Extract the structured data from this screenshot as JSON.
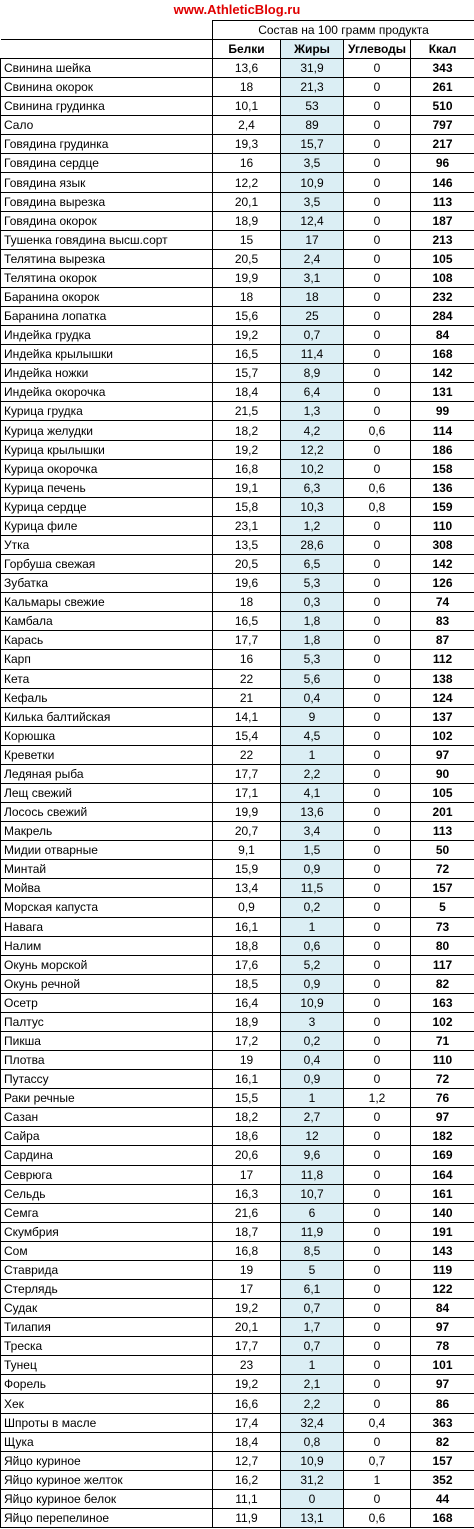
{
  "header": {
    "site": "www.AthleticBlog.ru",
    "group": "Состав на 100 грамм продукта",
    "columns": [
      "Белки",
      "Жиры",
      "Углеводы",
      "Ккал"
    ]
  },
  "table": {
    "rows": [
      [
        "Свинина шейка",
        "13,6",
        "31,9",
        "0",
        "343"
      ],
      [
        "Свинина окорок",
        "18",
        "21,3",
        "0",
        "261"
      ],
      [
        "Свинина грудинка",
        "10,1",
        "53",
        "0",
        "510"
      ],
      [
        "Сало",
        "2,4",
        "89",
        "0",
        "797"
      ],
      [
        "Говядина грудинка",
        "19,3",
        "15,7",
        "0",
        "217"
      ],
      [
        "Говядина сердце",
        "16",
        "3,5",
        "0",
        "96"
      ],
      [
        "Говядина язык",
        "12,2",
        "10,9",
        "0",
        "146"
      ],
      [
        "Говядина вырезка",
        "20,1",
        "3,5",
        "0",
        "113"
      ],
      [
        "Говядина окорок",
        "18,9",
        "12,4",
        "0",
        "187"
      ],
      [
        "Тушенка говядина высш.сорт",
        "15",
        "17",
        "0",
        "213"
      ],
      [
        "Телятина вырезка",
        "20,5",
        "2,4",
        "0",
        "105"
      ],
      [
        "Телятина окорок",
        "19,9",
        "3,1",
        "0",
        "108"
      ],
      [
        "Баранина окорок",
        "18",
        "18",
        "0",
        "232"
      ],
      [
        "Баранина лопатка",
        "15,6",
        "25",
        "0",
        "284"
      ],
      [
        "Индейка грудка",
        "19,2",
        "0,7",
        "0",
        "84"
      ],
      [
        "Индейка крылышки",
        "16,5",
        "11,4",
        "0",
        "168"
      ],
      [
        "Индейка ножки",
        "15,7",
        "8,9",
        "0",
        "142"
      ],
      [
        "Индейка окорочка",
        "18,4",
        "6,4",
        "0",
        "131"
      ],
      [
        "Курица грудка",
        "21,5",
        "1,3",
        "0",
        "99"
      ],
      [
        "Курица желудки",
        "18,2",
        "4,2",
        "0,6",
        "114"
      ],
      [
        "Курица крылышки",
        "19,2",
        "12,2",
        "0",
        "186"
      ],
      [
        "Курица окорочка",
        "16,8",
        "10,2",
        "0",
        "158"
      ],
      [
        "Курица печень",
        "19,1",
        "6,3",
        "0,6",
        "136"
      ],
      [
        "Курица сердце",
        "15,8",
        "10,3",
        "0,8",
        "159"
      ],
      [
        "Курица филе",
        "23,1",
        "1,2",
        "0",
        "110"
      ],
      [
        "Утка",
        "13,5",
        "28,6",
        "0",
        "308"
      ],
      [
        "Горбуша свежая",
        "20,5",
        "6,5",
        "0",
        "142"
      ],
      [
        "Зубатка",
        "19,6",
        "5,3",
        "0",
        "126"
      ],
      [
        "Кальмары свежие",
        "18",
        "0,3",
        "0",
        "74"
      ],
      [
        "Камбала",
        "16,5",
        "1,8",
        "0",
        "83"
      ],
      [
        "Карась",
        "17,7",
        "1,8",
        "0",
        "87"
      ],
      [
        "Карп",
        "16",
        "5,3",
        "0",
        "112"
      ],
      [
        "Кета",
        "22",
        "5,6",
        "0",
        "138"
      ],
      [
        "Кефаль",
        "21",
        "0,4",
        "0",
        "124"
      ],
      [
        "Килька балтийская",
        "14,1",
        "9",
        "0",
        "137"
      ],
      [
        "Корюшка",
        "15,4",
        "4,5",
        "0",
        "102"
      ],
      [
        "Креветки",
        "22",
        "1",
        "0",
        "97"
      ],
      [
        "Ледяная рыба",
        "17,7",
        "2,2",
        "0",
        "90"
      ],
      [
        "Лещ свежий",
        "17,1",
        "4,1",
        "0",
        "105"
      ],
      [
        "Лосось свежий",
        "19,9",
        "13,6",
        "0",
        "201"
      ],
      [
        "Макрель",
        "20,7",
        "3,4",
        "0",
        "113"
      ],
      [
        "Мидии отварные",
        "9,1",
        "1,5",
        "0",
        "50"
      ],
      [
        "Минтай",
        "15,9",
        "0,9",
        "0",
        "72"
      ],
      [
        "Мойва",
        "13,4",
        "11,5",
        "0",
        "157"
      ],
      [
        "Морская капуста",
        "0,9",
        "0,2",
        "0",
        "5"
      ],
      [
        "Навага",
        "16,1",
        "1",
        "0",
        "73"
      ],
      [
        "Налим",
        "18,8",
        "0,6",
        "0",
        "80"
      ],
      [
        "Окунь морской",
        "17,6",
        "5,2",
        "0",
        "117"
      ],
      [
        "Окунь речной",
        "18,5",
        "0,9",
        "0",
        "82"
      ],
      [
        "Осетр",
        "16,4",
        "10,9",
        "0",
        "163"
      ],
      [
        "Палтус",
        "18,9",
        "3",
        "0",
        "102"
      ],
      [
        "Пикша",
        "17,2",
        "0,2",
        "0",
        "71"
      ],
      [
        "Плотва",
        "19",
        "0,4",
        "0",
        "110"
      ],
      [
        "Путассу",
        "16,1",
        "0,9",
        "0",
        "72"
      ],
      [
        "Раки речные",
        "15,5",
        "1",
        "1,2",
        "76"
      ],
      [
        "Сазан",
        "18,2",
        "2,7",
        "0",
        "97"
      ],
      [
        "Сайра",
        "18,6",
        "12",
        "0",
        "182"
      ],
      [
        "Сардина",
        "20,6",
        "9,6",
        "0",
        "169"
      ],
      [
        "Севрюга",
        "17",
        "11,8",
        "0",
        "164"
      ],
      [
        "Сельдь",
        "16,3",
        "10,7",
        "0",
        "161"
      ],
      [
        "Семга",
        "21,6",
        "6",
        "0",
        "140"
      ],
      [
        "Скумбрия",
        "18,7",
        "11,9",
        "0",
        "191"
      ],
      [
        "Сом",
        "16,8",
        "8,5",
        "0",
        "143"
      ],
      [
        "Ставрида",
        "19",
        "5",
        "0",
        "119"
      ],
      [
        "Стерлядь",
        "17",
        "6,1",
        "0",
        "122"
      ],
      [
        "Судак",
        "19,2",
        "0,7",
        "0",
        "84"
      ],
      [
        "Тилапия",
        "20,1",
        "1,7",
        "0",
        "97"
      ],
      [
        "Треска",
        "17,7",
        "0,7",
        "0",
        "78"
      ],
      [
        "Тунец",
        "23",
        "1",
        "0",
        "101"
      ],
      [
        "Форель",
        "19,2",
        "2,1",
        "0",
        "97"
      ],
      [
        "Хек",
        "16,6",
        "2,2",
        "0",
        "86"
      ],
      [
        "Шпроты в масле",
        "17,4",
        "32,4",
        "0,4",
        "363"
      ],
      [
        "Щука",
        "18,4",
        "0,8",
        "0",
        "82"
      ],
      [
        "Яйцо куриное",
        "12,7",
        "10,9",
        "0,7",
        "157"
      ],
      [
        "Яйцо куриное желток",
        "16,2",
        "31,2",
        "1",
        "352"
      ],
      [
        "Яйцо куриное белок",
        "11,1",
        "0",
        "0",
        "44"
      ],
      [
        "Яйцо перепелиное",
        "11,9",
        "13,1",
        "0,6",
        "168"
      ]
    ]
  }
}
